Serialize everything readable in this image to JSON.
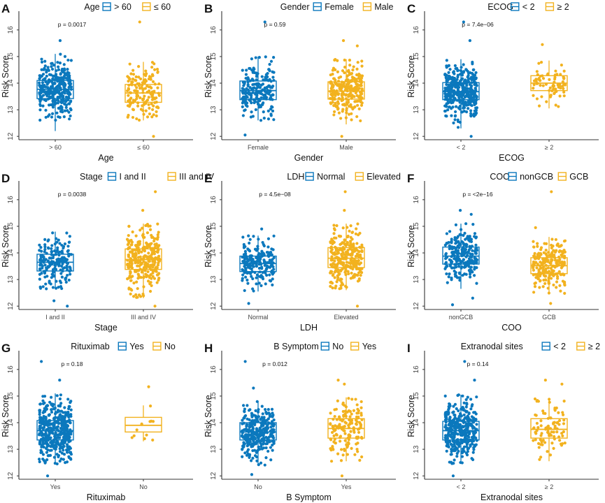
{
  "colors": {
    "group1": "#0B78BD",
    "group2": "#F2B21F",
    "axis": "#333333",
    "text": "#111111",
    "tick": "#444444"
  },
  "chart_data": [
    {
      "type": "boxplot",
      "panel_label": "A",
      "legend_title": "Age",
      "legend_entries": [
        "> 60",
        "≤ 60"
      ],
      "categories": [
        "> 60",
        "≤ 60"
      ],
      "xlabel": "Age",
      "ylabel": "Risk Score",
      "pvalue": "p = 0.0017",
      "ylim": [
        11.9,
        16.6
      ],
      "yticks": [
        "12",
        "13",
        "14",
        "15",
        "16"
      ],
      "series": [
        {
          "name": "> 60",
          "n": 320,
          "min": 12.2,
          "q1": 13.42,
          "median": 13.77,
          "q3": 14.1,
          "max": 15.1,
          "outliers": [
            15.6
          ]
        },
        {
          "name": "≤ 60",
          "n": 150,
          "min": 12.6,
          "q1": 13.28,
          "median": 13.63,
          "q3": 13.95,
          "max": 14.8,
          "outliers": [
            16.3,
            12.0
          ]
        }
      ]
    },
    {
      "type": "boxplot",
      "panel_label": "B",
      "legend_title": "Gender",
      "legend_entries": [
        "Female",
        "Male"
      ],
      "categories": [
        "Female",
        "Male"
      ],
      "xlabel": "Gender",
      "ylabel": "Risk Score",
      "pvalue": "p = 0.59",
      "ylim": [
        11.9,
        16.6
      ],
      "yticks": [
        "12",
        "13",
        "14",
        "15",
        "16"
      ],
      "series": [
        {
          "name": "Female",
          "n": 200,
          "min": 12.6,
          "q1": 13.38,
          "median": 13.72,
          "q3": 14.08,
          "max": 15.0,
          "outliers": [
            16.3,
            12.05
          ]
        },
        {
          "name": "Male",
          "n": 260,
          "min": 12.45,
          "q1": 13.4,
          "median": 13.7,
          "q3": 14.05,
          "max": 14.9,
          "outliers": [
            15.6,
            15.4,
            12.0
          ]
        }
      ]
    },
    {
      "type": "boxplot",
      "panel_label": "C",
      "legend_title": "ECOG",
      "legend_entries": [
        "< 2",
        "≥ 2"
      ],
      "categories": [
        "< 2",
        "≥ 2"
      ],
      "xlabel": "ECOG",
      "ylabel": "Risk Score",
      "pvalue": "p = 7.4e−06",
      "ylim": [
        11.9,
        16.6
      ],
      "yticks": [
        "12",
        "13",
        "14",
        "15",
        "16"
      ],
      "series": [
        {
          "name": "< 2",
          "n": 380,
          "min": 12.3,
          "q1": 13.38,
          "median": 13.68,
          "q3": 14.02,
          "max": 14.9,
          "outliers": [
            16.3,
            15.6,
            12.0
          ]
        },
        {
          "name": "≥ 2",
          "n": 70,
          "min": 13.05,
          "q1": 13.72,
          "median": 14.0,
          "q3": 14.28,
          "max": 14.85,
          "outliers": [
            15.45
          ]
        }
      ]
    },
    {
      "type": "boxplot",
      "panel_label": "D",
      "legend_title": "Stage",
      "legend_entries": [
        "I and II",
        "III and IV"
      ],
      "categories": [
        "I and II",
        "III and IV"
      ],
      "xlabel": "Stage",
      "ylabel": "Risk Score",
      "pvalue": "p = 0.0038",
      "ylim": [
        11.9,
        16.6
      ],
      "yticks": [
        "12",
        "13",
        "14",
        "15",
        "16"
      ],
      "series": [
        {
          "name": "I and II",
          "n": 180,
          "min": 12.65,
          "q1": 13.32,
          "median": 13.65,
          "q3": 13.95,
          "max": 14.8,
          "outliers": [
            12.2,
            12.0
          ]
        },
        {
          "name": "III and IV",
          "n": 290,
          "min": 12.3,
          "q1": 13.38,
          "median": 13.75,
          "q3": 14.15,
          "max": 15.1,
          "outliers": [
            16.3,
            15.6,
            12.0
          ]
        }
      ]
    },
    {
      "type": "boxplot",
      "panel_label": "E",
      "legend_title": "LDH",
      "legend_entries": [
        "Normal",
        "Elevated"
      ],
      "categories": [
        "Normal",
        "Elevated"
      ],
      "xlabel": "LDH",
      "ylabel": "Risk Score",
      "pvalue": "p = 4.5e−08",
      "ylim": [
        11.9,
        16.6
      ],
      "yticks": [
        "12",
        "13",
        "14",
        "15",
        "16"
      ],
      "series": [
        {
          "name": "Normal",
          "n": 200,
          "min": 12.55,
          "q1": 13.3,
          "median": 13.6,
          "q3": 13.88,
          "max": 14.65,
          "outliers": [
            14.9,
            12.1
          ]
        },
        {
          "name": "Elevated",
          "n": 270,
          "min": 12.6,
          "q1": 13.45,
          "median": 13.8,
          "q3": 14.2,
          "max": 15.1,
          "outliers": [
            16.3,
            15.6,
            12.0
          ]
        }
      ]
    },
    {
      "type": "boxplot",
      "panel_label": "F",
      "legend_title": "COO",
      "legend_entries": [
        "nonGCB",
        "GCB"
      ],
      "categories": [
        "nonGCB",
        "GCB"
      ],
      "xlabel": "COO",
      "ylabel": "Risk Score",
      "pvalue": "p = <2e−16",
      "ylim": [
        11.9,
        16.6
      ],
      "yticks": [
        "12",
        "13",
        "14",
        "15",
        "16"
      ],
      "series": [
        {
          "name": "nonGCB",
          "n": 240,
          "min": 12.65,
          "q1": 13.58,
          "median": 13.88,
          "q3": 14.22,
          "max": 15.1,
          "outliers": [
            15.6,
            15.45,
            12.3,
            12.05
          ]
        },
        {
          "name": "GCB",
          "n": 220,
          "min": 12.45,
          "q1": 13.22,
          "median": 13.52,
          "q3": 13.82,
          "max": 14.6,
          "outliers": [
            16.3,
            14.95,
            12.1
          ]
        }
      ]
    },
    {
      "type": "boxplot",
      "panel_label": "G",
      "legend_title": "Rituximab",
      "legend_entries": [
        "Yes",
        "No"
      ],
      "categories": [
        "Yes",
        "No"
      ],
      "xlabel": "Rituximab",
      "ylabel": "Risk Score",
      "pvalue": "p = 0.18",
      "ylim": [
        11.9,
        16.6
      ],
      "yticks": [
        "12",
        "13",
        "14",
        "15",
        "16"
      ],
      "series": [
        {
          "name": "Yes",
          "n": 420,
          "min": 12.45,
          "q1": 13.35,
          "median": 13.7,
          "q3": 14.08,
          "max": 15.1,
          "outliers": [
            16.3,
            15.6,
            12.0
          ]
        },
        {
          "name": "No",
          "n": 12,
          "min": 13.3,
          "q1": 13.65,
          "median": 13.9,
          "q3": 14.2,
          "max": 14.65,
          "outliers": [
            15.35
          ]
        }
      ]
    },
    {
      "type": "boxplot",
      "panel_label": "H",
      "legend_title": "B Symptom",
      "legend_entries": [
        "No",
        "Yes"
      ],
      "categories": [
        "No",
        "Yes"
      ],
      "xlabel": "B Symptom",
      "ylabel": "Risk Score",
      "pvalue": "p = 0.012",
      "ylim": [
        11.9,
        16.6
      ],
      "yticks": [
        "12",
        "13",
        "14",
        "15",
        "16"
      ],
      "series": [
        {
          "name": "No",
          "n": 310,
          "min": 12.4,
          "q1": 13.35,
          "median": 13.65,
          "q3": 14.0,
          "max": 14.8,
          "outliers": [
            16.3,
            15.3,
            12.05
          ]
        },
        {
          "name": "Yes",
          "n": 150,
          "min": 12.55,
          "q1": 13.42,
          "median": 13.78,
          "q3": 14.15,
          "max": 14.95,
          "outliers": [
            15.6,
            15.45,
            12.0
          ]
        }
      ]
    },
    {
      "type": "boxplot",
      "panel_label": "I",
      "legend_title": "Extranodal sites",
      "legend_entries": [
        "< 2",
        "≥ 2"
      ],
      "categories": [
        "< 2",
        "≥ 2"
      ],
      "xlabel": "Extranodal sites",
      "ylabel": "Risk Score",
      "pvalue": "p = 0.14",
      "ylim": [
        11.9,
        16.6
      ],
      "yticks": [
        "12",
        "13",
        "14",
        "15",
        "16"
      ],
      "series": [
        {
          "name": "< 2",
          "n": 370,
          "min": 12.45,
          "q1": 13.35,
          "median": 13.7,
          "q3": 14.05,
          "max": 15.05,
          "outliers": [
            16.3,
            15.6,
            12.0
          ]
        },
        {
          "name": "≥ 2",
          "n": 90,
          "min": 12.55,
          "q1": 13.42,
          "median": 13.75,
          "q3": 14.15,
          "max": 14.9,
          "outliers": [
            15.6,
            15.45
          ]
        }
      ]
    }
  ]
}
